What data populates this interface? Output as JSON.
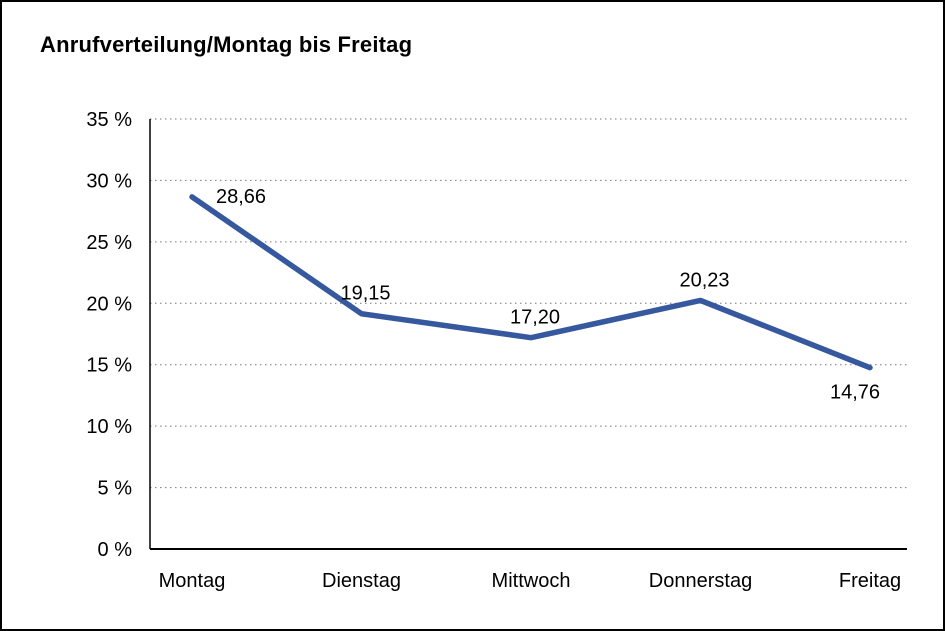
{
  "page": {
    "title": "Anrufverteilung/Montag bis Freitag"
  },
  "chart_data": {
    "type": "line",
    "title": "Anrufverteilung/Montag bis Freitag",
    "categories": [
      "Montag",
      "Dienstag",
      "Mittwoch",
      "Donnerstag",
      "Freitag"
    ],
    "values": [
      28.66,
      19.15,
      17.2,
      20.23,
      14.76
    ],
    "value_labels": [
      "28,66",
      "19,15",
      "17,20",
      "20,23",
      "14,76"
    ],
    "xlabel": "",
    "ylabel": "",
    "ylim": [
      0,
      35
    ],
    "ytick_step": 5,
    "ytick_labels": [
      "0 %",
      "5 %",
      "10 %",
      "15 %",
      "20 %",
      "25 %",
      "30 %",
      "35 %"
    ],
    "grid": "dotted-horizontal",
    "legend": "none",
    "line_color": "#35589E",
    "axis_color": "#000000",
    "gridline_color": "#777777",
    "label_positions": [
      "right",
      "above",
      "above",
      "above",
      "below"
    ]
  }
}
